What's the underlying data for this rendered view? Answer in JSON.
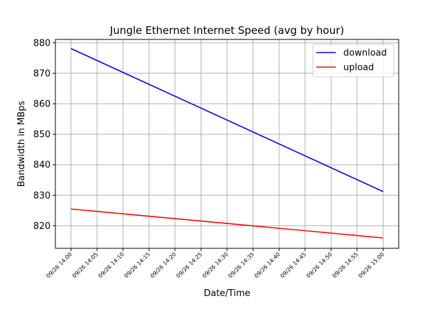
{
  "chart_data": {
    "type": "line",
    "title": "Jungle Ethernet Internet Speed (avg by hour)",
    "xlabel": "Date/Time",
    "ylabel": "Bandwidth in MBps",
    "x_ticks": [
      "09/26 14:00",
      "09/26 14:05",
      "09/26 14:10",
      "09/26 14:15",
      "09/26 14:20",
      "09/26 14:25",
      "09/26 14:30",
      "09/26 14:35",
      "09/26 14:40",
      "09/26 14:45",
      "09/26 14:50",
      "09/26 14:55",
      "09/26 15:00"
    ],
    "x": [
      "09/26 14:00",
      "09/26 15:00"
    ],
    "xlim": [
      "09/26 13:57",
      "09/26 15:03"
    ],
    "ylim": [
      812.6,
      881.1
    ],
    "y_ticks": [
      820,
      830,
      840,
      850,
      860,
      870,
      880
    ],
    "grid": true,
    "legend_position": "top-right",
    "series": [
      {
        "name": "download",
        "color": "#0000ff",
        "values": [
          878.1,
          831.2
        ]
      },
      {
        "name": "upload",
        "color": "#ff0000",
        "values": [
          825.5,
          816.0
        ]
      }
    ]
  }
}
